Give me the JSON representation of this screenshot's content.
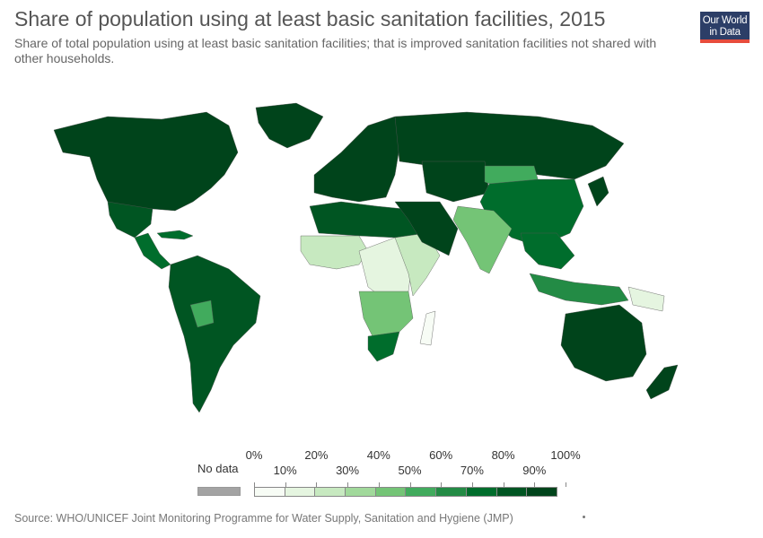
{
  "header": {
    "title": "Share of population using at least basic sanitation facilities, 2015",
    "subtitle": "Share of total population using at least basic sanitation facilities; that is improved sanitation facilities not shared with other households."
  },
  "logo": {
    "line1": "Our World",
    "line2": "in Data",
    "bg": "#2c3e67",
    "accent": "#e74c3c"
  },
  "legend": {
    "no_data_label": "No data",
    "no_data_color": "#a3a3a3",
    "top_labels": [
      "0%",
      "20%",
      "40%",
      "60%",
      "80%",
      "100%"
    ],
    "bottom_labels": [
      "10%",
      "30%",
      "50%",
      "70%",
      "90%"
    ],
    "bin_colors": [
      "#f7fcf5",
      "#e5f5e0",
      "#c7e9c0",
      "#a1d99b",
      "#74c476",
      "#41ab5d",
      "#238b45",
      "#006d2c",
      "#005522",
      "#00441b"
    ]
  },
  "map": {
    "regions": [
      {
        "name": "north-america-region",
        "value": 99
      },
      {
        "name": "greenland-region",
        "value": 95
      },
      {
        "name": "mexico-region",
        "value": 88
      },
      {
        "name": "central-america-region",
        "value": 75
      },
      {
        "name": "caribbean-region",
        "value": 70
      },
      {
        "name": "south-america-region",
        "value": 85
      },
      {
        "name": "bolivia-region",
        "value": 55
      },
      {
        "name": "europe-region",
        "value": 95
      },
      {
        "name": "russia-region",
        "value": 90
      },
      {
        "name": "north-africa-region",
        "value": 87
      },
      {
        "name": "west-africa-region",
        "value": 25
      },
      {
        "name": "central-africa-region",
        "value": 15
      },
      {
        "name": "east-africa-region",
        "value": 20
      },
      {
        "name": "southern-africa-region",
        "value": 45
      },
      {
        "name": "south-africa-region",
        "value": 72
      },
      {
        "name": "madagascar-region",
        "value": 9
      },
      {
        "name": "middle-east-region",
        "value": 95
      },
      {
        "name": "central-asia-region",
        "value": 97
      },
      {
        "name": "mongolia-region",
        "value": 58
      },
      {
        "name": "china-region",
        "value": 75
      },
      {
        "name": "india-region",
        "value": 44
      },
      {
        "name": "southeast-asia-region",
        "value": 70
      },
      {
        "name": "indonesia-region",
        "value": 68
      },
      {
        "name": "png-region",
        "value": 18
      },
      {
        "name": "australia-region",
        "value": 99
      },
      {
        "name": "new-zealand-region",
        "value": 99
      },
      {
        "name": "japan-region",
        "value": 99
      }
    ]
  },
  "footer": {
    "source": "Source: WHO/UNICEF Joint Monitoring Programme for Water Supply, Sanitation and Hygiene (JMP)"
  }
}
